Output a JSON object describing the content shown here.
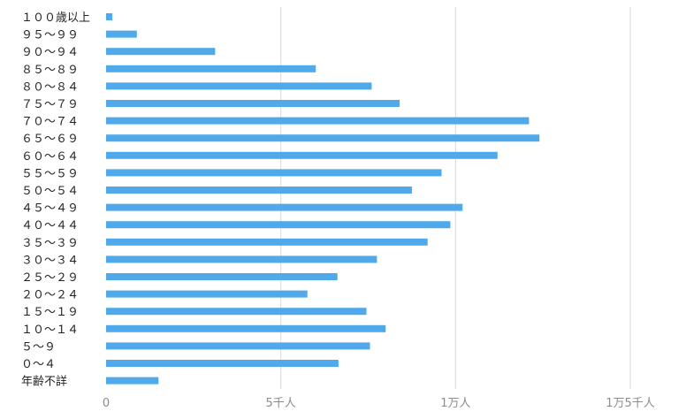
{
  "chart_data": {
    "type": "bar",
    "orientation": "horizontal",
    "categories": [
      "１００歳以上",
      "９５～９９",
      "９０～９４",
      "８５～８９",
      "８０～８４",
      "７５～７９",
      "７０～７４",
      "６５～６９",
      "６０～６４",
      "５５～５９",
      "５０～５４",
      "４５～４９",
      "４０～４４",
      "３５～３９",
      "３０～３４",
      "２５～２９",
      "２０～２４",
      "１５～１９",
      "１０～１４",
      "５～９",
      "０～４",
      "年齢不詳"
    ],
    "values": [
      180,
      880,
      3120,
      6000,
      7600,
      8400,
      12100,
      12400,
      11200,
      9600,
      8750,
      10200,
      9850,
      9200,
      7750,
      6620,
      5760,
      7450,
      8000,
      7550,
      6650,
      1500
    ],
    "xlim": [
      0,
      16000
    ],
    "xticks": [
      0,
      5000,
      10000,
      15000
    ],
    "xtick_labels": [
      "0",
      "5千人",
      "1万人",
      "1万5千人"
    ],
    "grid": "vertical",
    "bar_color": "#4FA9EA",
    "grid_color": "#d9d9d9",
    "title": "",
    "xlabel": "",
    "ylabel": ""
  }
}
